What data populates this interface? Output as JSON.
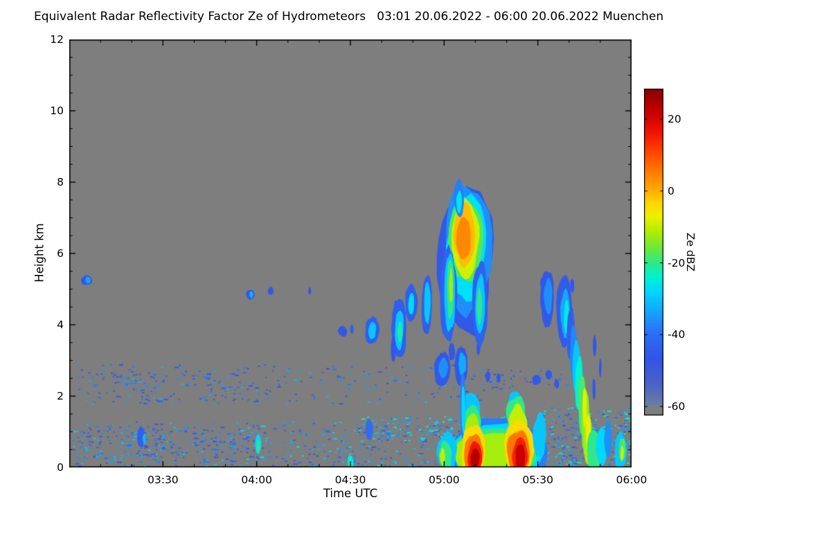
{
  "figure": {
    "title": "Equivalent Radar Reflectivity Factor Ze of Hydrometeors   03:01 20.06.2022 - 06:00 20.06.2022 Muenchen"
  },
  "chart_data": {
    "type": "heatmap",
    "title": "Equivalent Radar Reflectivity Factor Ze of Hydrometeors",
    "subtitle": "03:01 20.06.2022 - 06:00 20.06.2022 Muenchen",
    "station": "Muenchen",
    "xlabel": "Time UTC",
    "ylabel": "Height km",
    "background_nodata_color": "#7e7e7e",
    "x_axis": {
      "start": "03:01",
      "end": "06:00",
      "t_range": [
        0,
        180
      ],
      "ticks": [
        {
          "label": "03:30",
          "t": 30
        },
        {
          "label": "04:00",
          "t": 60
        },
        {
          "label": "04:30",
          "t": 90
        },
        {
          "label": "05:00",
          "t": 120
        },
        {
          "label": "05:30",
          "t": 150
        },
        {
          "label": "06:00",
          "t": 180
        }
      ],
      "minor_step_minutes": 10
    },
    "y_axis": {
      "lim": [
        0,
        12
      ],
      "ticks": [
        {
          "label": "0",
          "h": 0
        },
        {
          "label": "2",
          "h": 2
        },
        {
          "label": "4",
          "h": 4
        },
        {
          "label": "6",
          "h": 6
        },
        {
          "label": "8",
          "h": 8
        },
        {
          "label": "10",
          "h": 10
        },
        {
          "label": "12",
          "h": 12
        }
      ],
      "minor_step_km": 0.5
    },
    "colorbar": {
      "label": "Ze dBZ",
      "vmax": 28.5,
      "vmin": -62.5,
      "nodata_below": -60,
      "ticks": [
        {
          "label": "20",
          "v": 20
        },
        {
          "label": "0",
          "v": 0
        },
        {
          "label": "-20",
          "v": -20
        },
        {
          "label": "-40",
          "v": -40
        },
        {
          "label": "-60",
          "v": -60
        }
      ],
      "stops": [
        [
          -60,
          "#6e7fa0"
        ],
        [
          -54,
          "#4b63c4"
        ],
        [
          -47,
          "#3354e6"
        ],
        [
          -40,
          "#2b6ef4"
        ],
        [
          -34,
          "#18a0fc"
        ],
        [
          -28,
          "#00d8ff"
        ],
        [
          -24,
          "#00f2d0"
        ],
        [
          -20,
          "#30e88a"
        ],
        [
          -16,
          "#6ae83e"
        ],
        [
          -11,
          "#b4ee00"
        ],
        [
          -7,
          "#eef000"
        ],
        [
          -3,
          "#ffd400"
        ],
        [
          1,
          "#ffa400"
        ],
        [
          6,
          "#ff7600"
        ],
        [
          11,
          "#ff4400"
        ],
        [
          16,
          "#f21600"
        ],
        [
          22,
          "#c80000"
        ],
        [
          28,
          "#8e0000"
        ],
        [
          30,
          "#7c0000"
        ]
      ]
    },
    "echo_format": "[t_minutes_after_0300, height_km, rx_minutes, ry_km, dbz]",
    "echoes": [
      [
        5.5,
        5.25,
        1.7,
        0.14,
        -46
      ],
      [
        6.0,
        5.25,
        0.8,
        0.1,
        -34
      ],
      [
        58,
        4.85,
        1.4,
        0.14,
        -46
      ],
      [
        58.3,
        4.85,
        0.6,
        0.1,
        -32
      ],
      [
        64.5,
        4.95,
        0.9,
        0.12,
        -46
      ],
      [
        77,
        4.95,
        0.45,
        0.1,
        -46
      ],
      [
        87.5,
        3.82,
        1.4,
        0.14,
        -46
      ],
      [
        90.5,
        3.88,
        0.6,
        0.12,
        -44
      ],
      [
        97,
        3.85,
        2.2,
        0.4,
        -44
      ],
      [
        97,
        3.85,
        1.2,
        0.25,
        -30
      ],
      [
        105.5,
        3.9,
        2.4,
        0.85,
        -44
      ],
      [
        105.7,
        3.85,
        1.4,
        0.55,
        -30
      ],
      [
        105.8,
        3.8,
        0.75,
        0.3,
        -22
      ],
      [
        103.8,
        3.3,
        0.8,
        0.35,
        -46
      ],
      [
        109.5,
        4.6,
        1.9,
        0.55,
        -44
      ],
      [
        109.5,
        4.6,
        1.0,
        0.3,
        -28
      ],
      [
        114.5,
        4.55,
        1.7,
        0.9,
        -44
      ],
      [
        114.6,
        4.65,
        1.0,
        0.6,
        -30
      ],
      [
        119.5,
        2.75,
        2.6,
        0.5,
        -46
      ],
      [
        119.8,
        2.8,
        1.5,
        0.3,
        -36
      ],
      [
        125.5,
        2.85,
        2.2,
        0.55,
        -46
      ],
      [
        125.8,
        2.9,
        1.2,
        0.3,
        -33
      ],
      [
        122.5,
        3.25,
        1.0,
        0.25,
        -46
      ],
      [
        131.0,
        3.35,
        0.6,
        0.18,
        -46
      ],
      [
        134.0,
        2.55,
        0.8,
        0.15,
        -46
      ],
      [
        137.5,
        2.5,
        0.6,
        0.13,
        -46
      ],
      [
        149.5,
        2.45,
        1.4,
        0.14,
        -46
      ],
      [
        153.5,
        2.6,
        1.0,
        0.13,
        -46
      ],
      [
        156.0,
        2.35,
        0.8,
        0.12,
        -46
      ],
      [
        151.5,
        5.15,
        0.8,
        0.16,
        -46
      ],
      [
        154.0,
        5.3,
        0.5,
        0.12,
        -46
      ],
      [
        127,
        5.9,
        9.0,
        2.05,
        -46
      ],
      [
        127,
        6.1,
        7.6,
        1.8,
        -36
      ],
      [
        127,
        6.2,
        6.4,
        1.55,
        -27
      ],
      [
        126.8,
        6.35,
        5.3,
        1.3,
        -18
      ],
      [
        126.8,
        6.45,
        4.3,
        1.1,
        -9
      ],
      [
        126.5,
        6.5,
        3.4,
        0.9,
        -1
      ],
      [
        126.2,
        6.45,
        2.2,
        0.6,
        4
      ],
      [
        124.8,
        7.5,
        1.6,
        0.55,
        -38
      ],
      [
        124.8,
        7.45,
        0.9,
        0.33,
        -26
      ],
      [
        121.5,
        4.8,
        2.6,
        1.4,
        -43
      ],
      [
        121.8,
        4.9,
        1.8,
        1.1,
        -30
      ],
      [
        122.0,
        5.0,
        1.1,
        0.8,
        -20
      ],
      [
        122.2,
        5.1,
        0.6,
        0.5,
        -12
      ],
      [
        131.5,
        4.6,
        2.4,
        1.2,
        -43
      ],
      [
        131.5,
        4.6,
        1.5,
        0.85,
        -30
      ],
      [
        131.3,
        4.55,
        0.8,
        0.5,
        -20
      ],
      [
        153,
        4.75,
        2.2,
        0.8,
        -46
      ],
      [
        153.3,
        4.8,
        1.3,
        0.5,
        -36
      ],
      [
        158.5,
        4.35,
        2.5,
        1.0,
        -45
      ],
      [
        158.8,
        4.3,
        1.5,
        0.7,
        -33
      ],
      [
        159.2,
        4.2,
        0.8,
        0.45,
        -25
      ],
      [
        161,
        5.1,
        0.6,
        0.2,
        -46
      ],
      [
        160.5,
        3.7,
        1.3,
        0.8,
        -44
      ],
      [
        161.5,
        3.2,
        1.2,
        0.75,
        -37
      ],
      [
        162.3,
        2.8,
        1.2,
        0.75,
        -30
      ],
      [
        163.2,
        2.3,
        1.2,
        0.8,
        -24
      ],
      [
        164.2,
        1.8,
        1.2,
        0.85,
        -18
      ],
      [
        165.2,
        1.3,
        1.3,
        0.9,
        -14
      ],
      [
        166.0,
        0.8,
        1.4,
        0.8,
        -12
      ],
      [
        165.0,
        1.7,
        0.7,
        0.6,
        -8
      ],
      [
        166.2,
        0.9,
        0.8,
        0.55,
        -7
      ],
      [
        168.0,
        0.5,
        2.2,
        0.6,
        -20
      ],
      [
        170.5,
        0.6,
        1.8,
        0.55,
        -28
      ],
      [
        172.5,
        0.8,
        1.2,
        0.5,
        -36
      ],
      [
        176.5,
        0.45,
        1.8,
        0.55,
        -30
      ],
      [
        177.0,
        0.5,
        1.0,
        0.35,
        -18
      ],
      [
        177.0,
        0.4,
        0.5,
        0.2,
        -9
      ],
      [
        168.0,
        2.2,
        0.5,
        0.3,
        -46
      ],
      [
        170.0,
        2.8,
        0.4,
        0.25,
        -46
      ],
      [
        168.2,
        3.4,
        0.6,
        0.3,
        -46
      ],
      [
        137,
        0.45,
        16.0,
        0.95,
        -38
      ],
      [
        136.5,
        0.4,
        14.5,
        0.8,
        -28
      ],
      [
        136,
        0.4,
        13.0,
        0.7,
        -20
      ],
      [
        135.5,
        0.35,
        11.5,
        0.6,
        -12
      ],
      [
        128.5,
        1.6,
        3.0,
        0.5,
        -30
      ],
      [
        129,
        1.3,
        2.8,
        0.5,
        -20
      ],
      [
        129,
        1.0,
        2.5,
        0.5,
        -12
      ],
      [
        126,
        1.7,
        0.9,
        0.9,
        -38
      ],
      [
        126.2,
        1.6,
        0.6,
        0.7,
        -28
      ],
      [
        142.5,
        1.75,
        2.2,
        0.4,
        -30
      ],
      [
        143,
        1.5,
        3.2,
        0.5,
        -20
      ],
      [
        143.5,
        1.2,
        3.0,
        0.55,
        -10
      ],
      [
        129.5,
        0.45,
        3.8,
        0.75,
        -4
      ],
      [
        129.5,
        0.4,
        3.0,
        0.6,
        6
      ],
      [
        129.8,
        0.3,
        2.2,
        0.45,
        16
      ],
      [
        130,
        0.25,
        1.4,
        0.3,
        24
      ],
      [
        144,
        0.5,
        4.5,
        0.8,
        -4
      ],
      [
        144,
        0.45,
        3.6,
        0.65,
        6
      ],
      [
        144.2,
        0.35,
        2.6,
        0.5,
        15
      ],
      [
        144.5,
        0.3,
        1.6,
        0.35,
        22
      ],
      [
        121,
        0.4,
        3.0,
        0.55,
        -30
      ],
      [
        120.5,
        0.35,
        2.0,
        0.4,
        -20
      ],
      [
        119.5,
        0.3,
        0.8,
        0.25,
        -10
      ],
      [
        150.5,
        0.9,
        2.0,
        0.6,
        -30
      ],
      [
        60.5,
        0.65,
        1.0,
        0.3,
        -28
      ],
      [
        60.5,
        0.6,
        0.5,
        0.18,
        -20
      ],
      [
        96,
        1.05,
        1.2,
        0.3,
        -40
      ],
      [
        23,
        0.85,
        1.2,
        0.3,
        -44
      ],
      [
        24,
        0.8,
        0.5,
        0.15,
        -32
      ],
      [
        90,
        0.15,
        1.0,
        0.2,
        -25
      ]
    ],
    "speckle_fields": [
      {
        "name": "midlevel-speckle",
        "t0": 2,
        "t1": 133,
        "h0": 1.8,
        "h1": 2.9,
        "n": 240,
        "dbz": [
          -52,
          -30
        ],
        "seed": 11,
        "dash": 0.25
      },
      {
        "name": "midlevel-speckle-right",
        "t0": 133,
        "t1": 160,
        "h0": 2.2,
        "h1": 2.8,
        "n": 40,
        "dbz": [
          -52,
          -34
        ],
        "seed": 12,
        "dash": 0.2
      },
      {
        "name": "boundary-layer-speckle",
        "t0": 1,
        "t1": 180,
        "h0": 0.02,
        "h1": 1.3,
        "n": 650,
        "dbz": [
          -52,
          -26
        ],
        "seed": 21,
        "dash": 0.2
      },
      {
        "name": "bl-dense-left",
        "t0": 2,
        "t1": 60,
        "h0": 0.3,
        "h1": 1.15,
        "n": 150,
        "dbz": [
          -50,
          -30
        ],
        "seed": 31,
        "dash": 0.25
      },
      {
        "name": "bl-band-mid",
        "t0": 92,
        "t1": 152,
        "h0": 0.75,
        "h1": 1.45,
        "n": 160,
        "dbz": [
          -44,
          -20
        ],
        "seed": 41,
        "dash": 0.25
      },
      {
        "name": "right-dense",
        "t0": 150,
        "t1": 180,
        "h0": 0.05,
        "h1": 1.7,
        "n": 220,
        "dbz": [
          -46,
          -20
        ],
        "seed": 51,
        "dash": 0.2
      },
      {
        "name": "upper-sparse",
        "t0": 3,
        "t1": 60,
        "h0": 1.9,
        "h1": 2.75,
        "n": 60,
        "dbz": [
          -52,
          -34
        ],
        "seed": 61,
        "dash": 0.3
      }
    ]
  }
}
